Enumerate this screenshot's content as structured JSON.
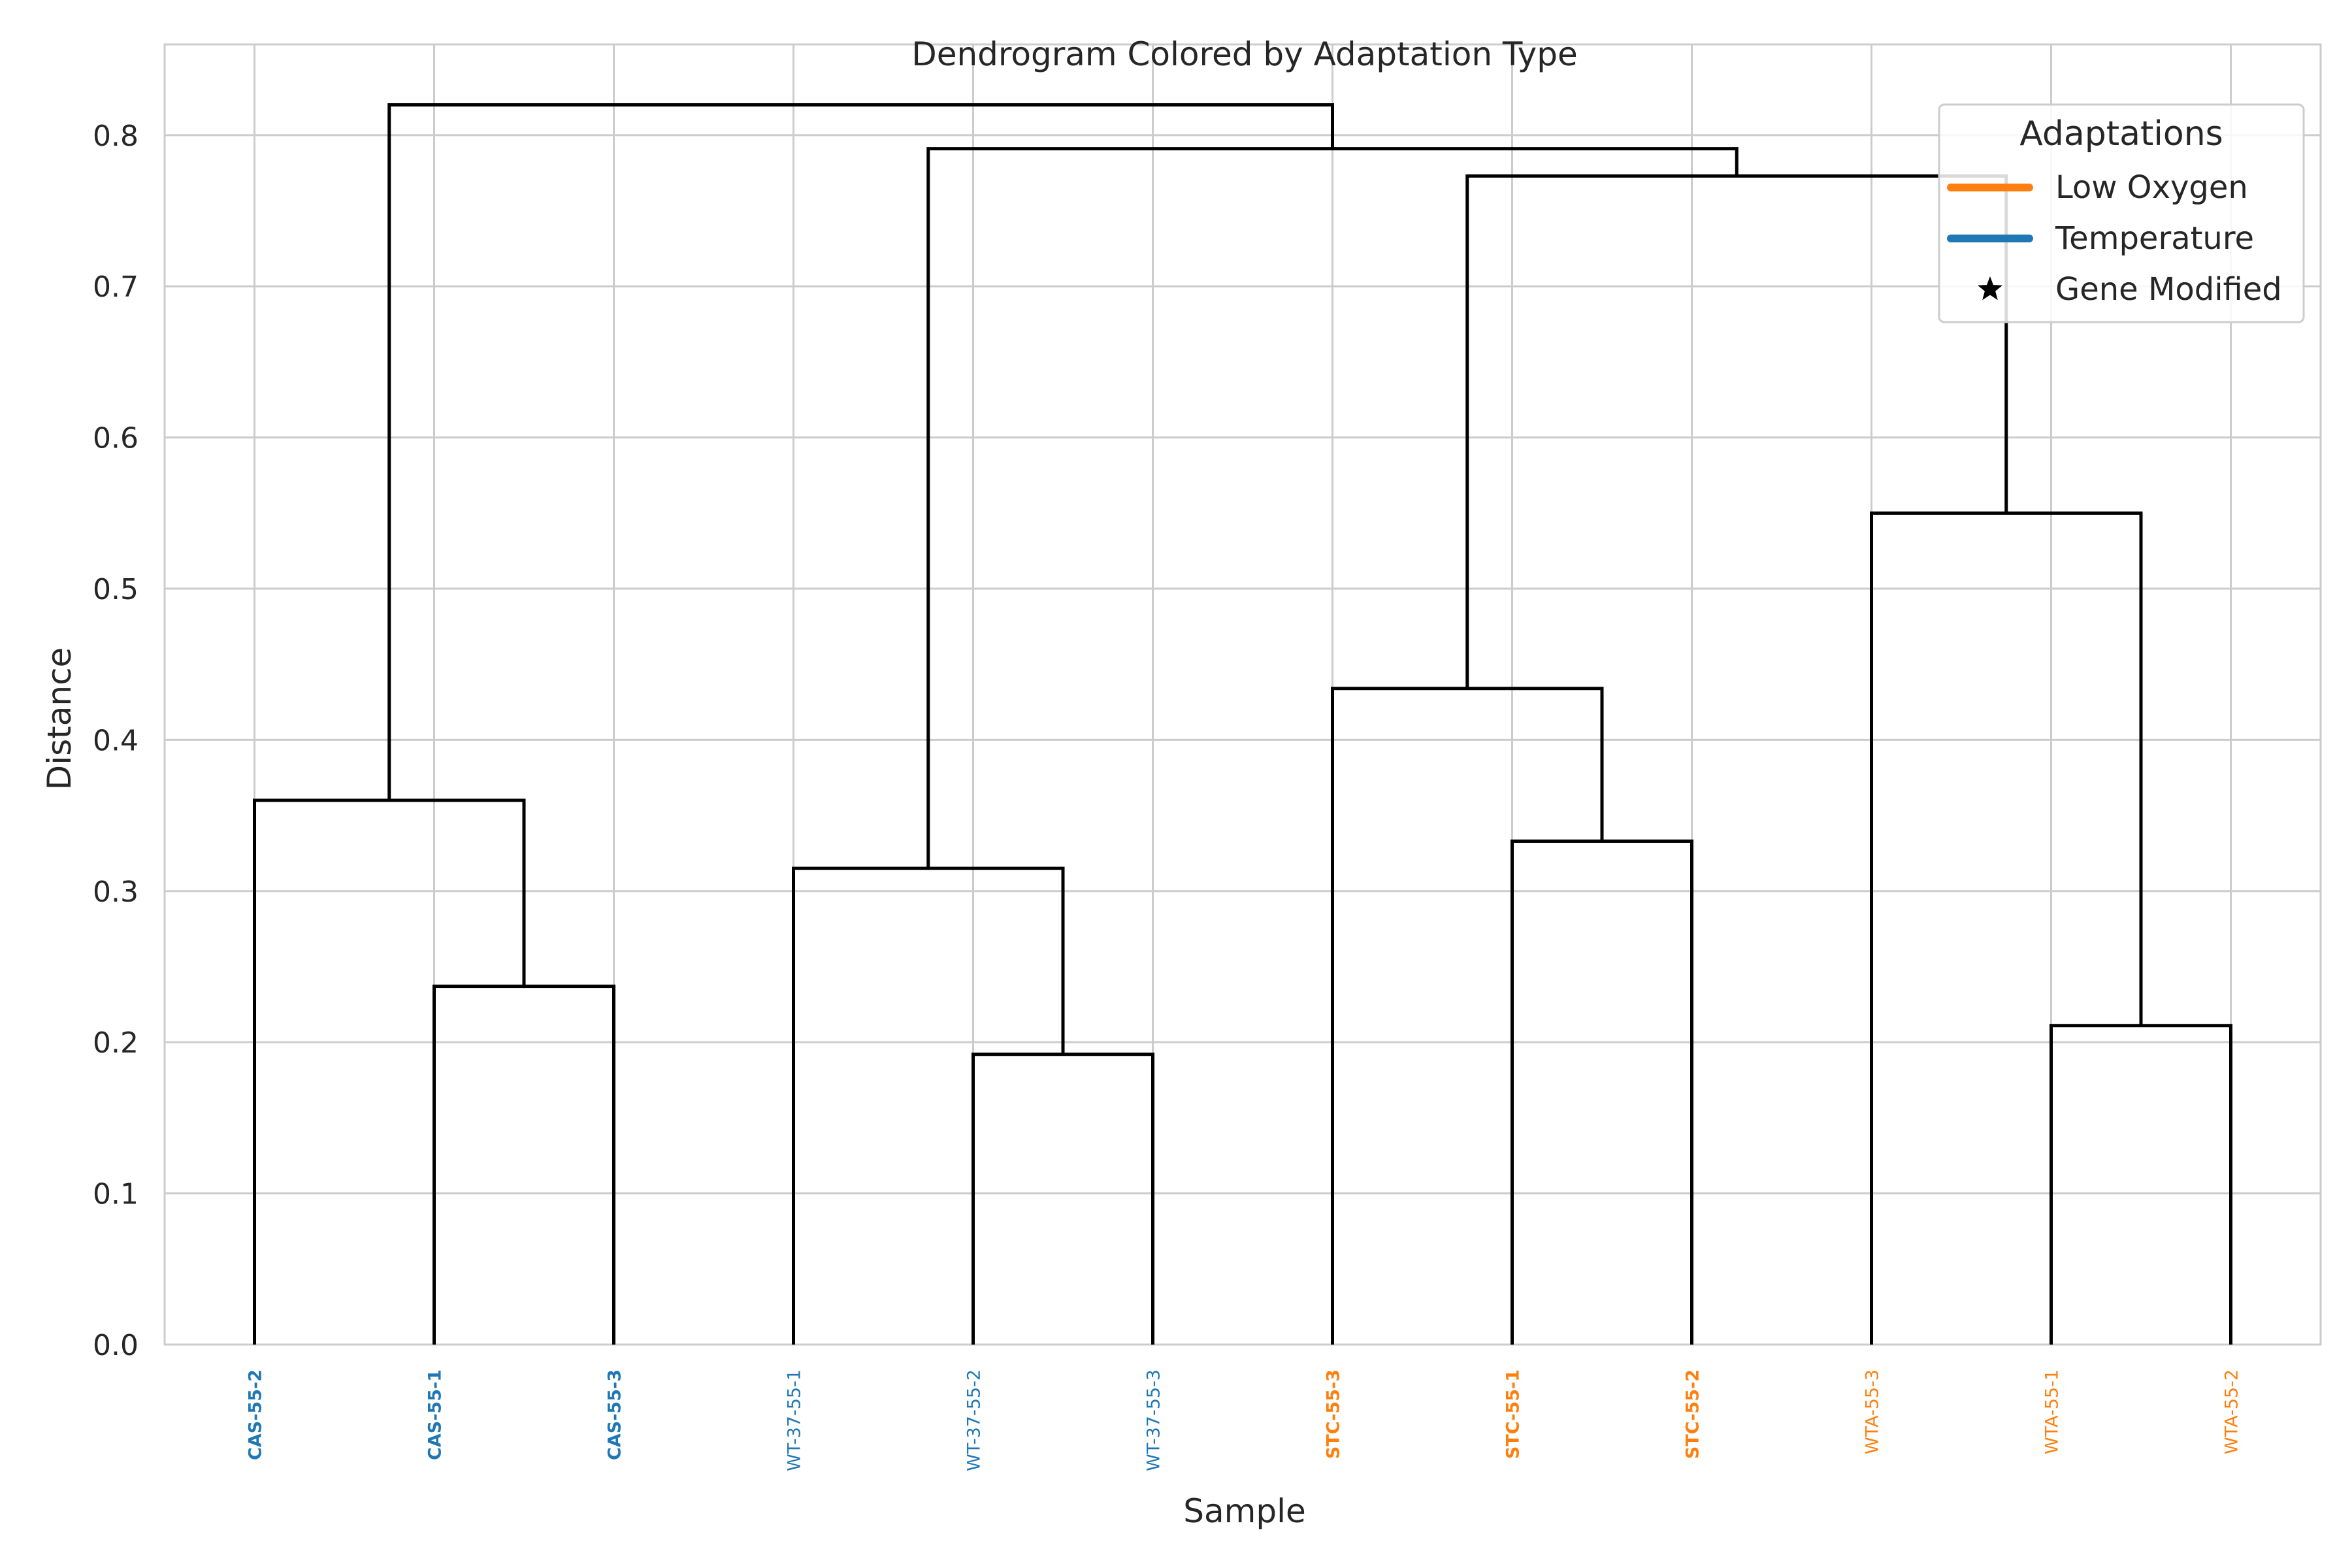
{
  "chart_data": {
    "type": "dendrogram",
    "title": "Dendrogram Colored by Adaptation Type",
    "xlabel": "Sample",
    "ylabel": "Distance",
    "ylim": [
      0,
      0.86
    ],
    "yticks": [
      "0.0",
      "0.1",
      "0.2",
      "0.3",
      "0.4",
      "0.5",
      "0.6",
      "0.7",
      "0.8"
    ],
    "grid": true,
    "legend": {
      "title": "Adaptations",
      "placement": "top-right",
      "items": [
        {
          "label": "Low Oxygen",
          "color": "#ff7f0e",
          "marker": "line"
        },
        {
          "label": "Temperature",
          "color": "#1f77b4",
          "marker": "line"
        },
        {
          "label": "Gene Modified",
          "color": "#000000",
          "marker": "star"
        }
      ]
    },
    "leaves": [
      {
        "label": "CAS-55-2",
        "adaptation": "Temperature",
        "gene_modified": true
      },
      {
        "label": "CAS-55-1",
        "adaptation": "Temperature",
        "gene_modified": true
      },
      {
        "label": "CAS-55-3",
        "adaptation": "Temperature",
        "gene_modified": true
      },
      {
        "label": "WT-37-55-1",
        "adaptation": "Temperature",
        "gene_modified": false
      },
      {
        "label": "WT-37-55-2",
        "adaptation": "Temperature",
        "gene_modified": false
      },
      {
        "label": "WT-37-55-3",
        "adaptation": "Temperature",
        "gene_modified": false
      },
      {
        "label": "STC-55-3",
        "adaptation": "Low Oxygen",
        "gene_modified": true
      },
      {
        "label": "STC-55-1",
        "adaptation": "Low Oxygen",
        "gene_modified": true
      },
      {
        "label": "STC-55-2",
        "adaptation": "Low Oxygen",
        "gene_modified": true
      },
      {
        "label": "WTA-55-3",
        "adaptation": "Low Oxygen",
        "gene_modified": false
      },
      {
        "label": "WTA-55-1",
        "adaptation": "Low Oxygen",
        "gene_modified": false
      },
      {
        "label": "WTA-55-2",
        "adaptation": "Low Oxygen",
        "gene_modified": false
      }
    ],
    "merges": [
      {
        "left": 4,
        "right": 5,
        "height": 0.192
      },
      {
        "left": 10,
        "right": 11,
        "height": 0.211
      },
      {
        "left": 1,
        "right": 2,
        "height": 0.237
      },
      {
        "left": 3,
        "right": 12,
        "height": 0.315
      },
      {
        "left": 7,
        "right": 8,
        "height": 0.333
      },
      {
        "left": 0,
        "right": 14,
        "height": 0.36
      },
      {
        "left": 6,
        "right": 16,
        "height": 0.434
      },
      {
        "left": 9,
        "right": 13,
        "height": 0.55
      },
      {
        "left": 18,
        "right": 19,
        "height": 0.773
      },
      {
        "left": 15,
        "right": 20,
        "height": 0.791
      },
      {
        "left": 17,
        "right": 21,
        "height": 0.82
      }
    ],
    "colors": {
      "link": "#000000",
      "Low Oxygen": "#ff7f0e",
      "Temperature": "#1f77b4",
      "grid": "#cccccc",
      "axes_edge": "#cccccc"
    }
  }
}
